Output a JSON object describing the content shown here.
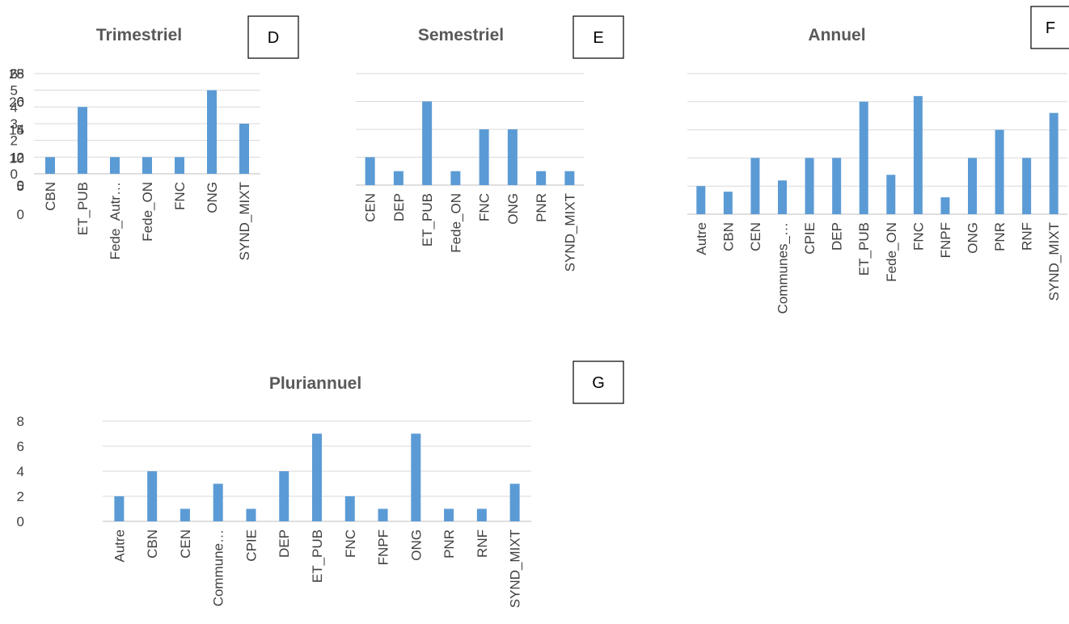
{
  "colors": {
    "bar": "#5b9bd5",
    "grid": "#d9d9d9",
    "text": "#404040",
    "title": "#595959"
  },
  "chart_data": [
    {
      "type": "bar",
      "title": "Trimestriel",
      "panel_label": "D",
      "categories": [
        "CBN",
        "ET_PUB",
        "Fede_Autr…",
        "Fede_ON",
        "FNC",
        "ONG",
        "SYND_MIXT"
      ],
      "values": [
        1,
        4,
        1,
        1,
        1,
        5,
        3
      ],
      "ylim": [
        0,
        6
      ],
      "yticks": [
        0,
        1,
        2,
        3,
        4,
        5,
        6
      ],
      "grid": true
    },
    {
      "type": "bar",
      "title": "Semestriel",
      "panel_label": "E",
      "categories": [
        "CEN",
        "DEP",
        "ET_PUB",
        "Fede_ON",
        "FNC",
        "ONG",
        "PNR",
        "SYND_MIXT"
      ],
      "values": [
        2,
        1,
        6,
        1,
        4,
        4,
        1,
        1
      ],
      "ylim": [
        0,
        8
      ],
      "yticks": [
        0,
        2,
        4,
        6,
        8
      ],
      "grid": true
    },
    {
      "type": "bar",
      "title": "Annuel",
      "panel_label": "F",
      "categories": [
        "Autre",
        "CBN",
        "CEN",
        "Communes_…",
        "CPIE",
        "DEP",
        "ET_PUB",
        "Fede_ON",
        "FNC",
        "FNPF",
        "ONG",
        "PNR",
        "RNF",
        "SYND_MIXT"
      ],
      "values": [
        5,
        4,
        10,
        6,
        10,
        10,
        20,
        7,
        21,
        3,
        10,
        15,
        10,
        18
      ],
      "ylim": [
        0,
        25
      ],
      "yticks": [
        0,
        5,
        10,
        15,
        20,
        25
      ],
      "grid": true
    },
    {
      "type": "bar",
      "title": "Pluriannuel",
      "panel_label": "G",
      "categories": [
        "Autre",
        "CBN",
        "CEN",
        "Commune…",
        "CPIE",
        "DEP",
        "ET_PUB",
        "FNC",
        "FNPF",
        "ONG",
        "PNR",
        "RNF",
        "SYND_MIXT"
      ],
      "values": [
        2,
        4,
        1,
        3,
        1,
        4,
        7,
        2,
        1,
        7,
        1,
        1,
        3
      ],
      "ylim": [
        0,
        8
      ],
      "yticks": [
        0,
        2,
        4,
        6,
        8
      ],
      "grid": true
    }
  ]
}
